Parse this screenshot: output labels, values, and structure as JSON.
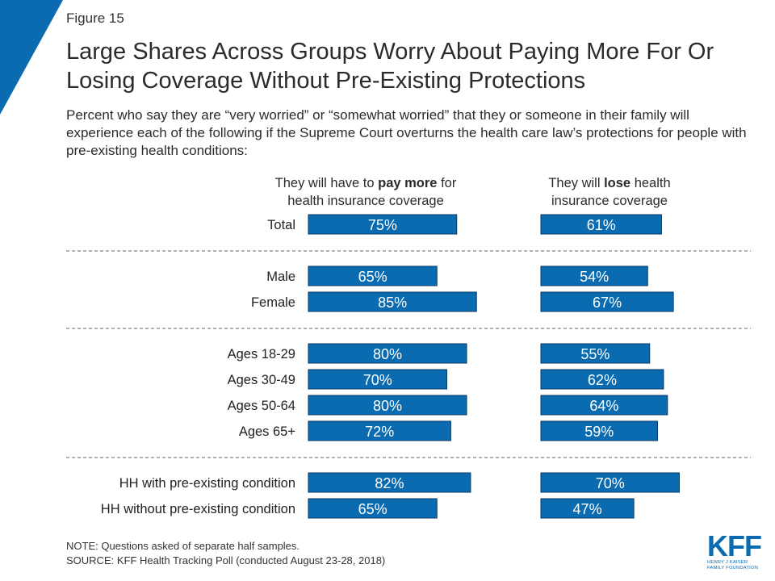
{
  "figure_label": "Figure 15",
  "title": "Large Shares Across Groups Worry About Paying More For Or Losing Coverage Without Pre-Existing Protections",
  "subtitle": "Percent who say they are “very worried” or “somewhat worried” that they or someone in their family will experience each of the following if the Supreme Court overturns the health care law’s protections for people with pre-existing health conditions:",
  "columns": [
    {
      "pre": "They will have to ",
      "bold": "pay more",
      "post": " for health insurance coverage"
    },
    {
      "pre": "They will ",
      "bold": "lose",
      "post": " health insurance coverage"
    }
  ],
  "note": "NOTE: Questions asked of separate half samples.",
  "source": "SOURCE: KFF Health Tracking Poll (conducted August 23-28, 2018)",
  "logo": {
    "mark": "KFF",
    "line1": "HENRY J KAISER",
    "line2": "FAMILY FOUNDATION"
  },
  "colors": {
    "bar": "#0a6bb0",
    "bar_border": "#083a66",
    "label": "#ffffff",
    "divider": "#666666",
    "corner": "#0a6bb0"
  },
  "chart_data": {
    "type": "bar",
    "orientation": "horizontal",
    "value_suffix": "%",
    "groups": [
      [
        "Total"
      ],
      [
        "Male",
        "Female"
      ],
      [
        "Ages 18-29",
        "Ages 30-49",
        "Ages 50-64",
        "Ages 65+"
      ],
      [
        "HH with pre-existing condition",
        "HH without pre-existing condition"
      ]
    ],
    "categories": [
      "Total",
      "Male",
      "Female",
      "Ages 18-29",
      "Ages 30-49",
      "Ages 50-64",
      "Ages 65+",
      "HH with pre-existing condition",
      "HH without pre-existing condition"
    ],
    "series": [
      {
        "values": [
          75,
          65,
          85,
          80,
          70,
          80,
          72,
          82,
          65
        ]
      },
      {
        "values": [
          61,
          54,
          67,
          55,
          62,
          64,
          59,
          70,
          47
        ]
      }
    ]
  }
}
